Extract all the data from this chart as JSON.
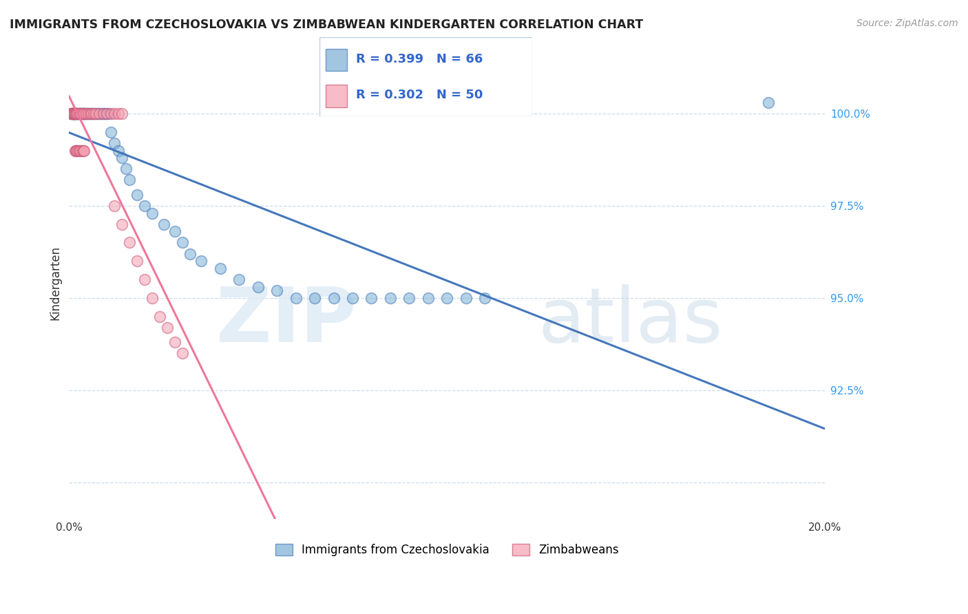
{
  "title": "IMMIGRANTS FROM CZECHOSLOVAKIA VS ZIMBABWEAN KINDERGARTEN CORRELATION CHART",
  "source": "Source: ZipAtlas.com",
  "ylabel": "Kindergarten",
  "blue_color": "#7BAFD4",
  "blue_edge_color": "#4477BB",
  "pink_color": "#F4A0B0",
  "pink_edge_color": "#CC5577",
  "blue_line_color": "#4477BB",
  "pink_line_color": "#EE7799",
  "xlim": [
    0.0,
    20.0
  ],
  "ylim": [
    89.0,
    101.8
  ],
  "yticks": [
    90.0,
    92.5,
    95.0,
    97.5,
    100.0
  ],
  "ytick_labels": [
    "",
    "92.5%",
    "95.0%",
    "97.5%",
    "100.0%"
  ],
  "blue_x": [
    0.05,
    0.08,
    0.1,
    0.1,
    0.12,
    0.13,
    0.15,
    0.15,
    0.18,
    0.2,
    0.22,
    0.25,
    0.25,
    0.28,
    0.3,
    0.3,
    0.32,
    0.35,
    0.38,
    0.4,
    0.4,
    0.42,
    0.45,
    0.48,
    0.5,
    0.55,
    0.6,
    0.65,
    0.7,
    0.75,
    0.8,
    0.85,
    0.9,
    0.95,
    1.0,
    1.05,
    1.1,
    1.2,
    1.3,
    1.4,
    1.5,
    1.6,
    1.8,
    2.0,
    2.2,
    2.5,
    2.8,
    3.0,
    3.2,
    3.5,
    4.0,
    4.5,
    5.0,
    5.5,
    6.0,
    6.5,
    7.0,
    7.5,
    8.0,
    8.5,
    9.0,
    9.5,
    10.0,
    10.5,
    11.0,
    18.5
  ],
  "blue_y": [
    100.0,
    100.0,
    100.0,
    100.0,
    100.0,
    100.0,
    100.0,
    100.0,
    100.0,
    100.0,
    100.0,
    100.0,
    100.0,
    100.0,
    100.0,
    100.0,
    100.0,
    100.0,
    100.0,
    100.0,
    100.0,
    100.0,
    100.0,
    100.0,
    100.0,
    100.0,
    100.0,
    100.0,
    100.0,
    100.0,
    100.0,
    100.0,
    100.0,
    100.0,
    100.0,
    100.0,
    99.5,
    99.2,
    99.0,
    98.8,
    98.5,
    98.2,
    97.8,
    97.5,
    97.3,
    97.0,
    96.8,
    96.5,
    96.2,
    96.0,
    95.8,
    95.5,
    95.3,
    95.2,
    95.0,
    95.0,
    95.0,
    95.0,
    95.0,
    95.0,
    95.0,
    95.0,
    95.0,
    95.0,
    95.0,
    100.3
  ],
  "pink_x": [
    0.04,
    0.06,
    0.08,
    0.1,
    0.1,
    0.12,
    0.13,
    0.15,
    0.15,
    0.18,
    0.2,
    0.22,
    0.25,
    0.28,
    0.3,
    0.35,
    0.4,
    0.45,
    0.5,
    0.55,
    0.6,
    0.65,
    0.7,
    0.8,
    0.9,
    1.0,
    1.1,
    1.2,
    1.3,
    1.4,
    0.15,
    0.18,
    0.2,
    0.22,
    0.25,
    0.28,
    0.3,
    0.35,
    0.38,
    0.4,
    1.2,
    1.4,
    1.6,
    1.8,
    2.0,
    2.2,
    2.4,
    2.6,
    2.8,
    3.0
  ],
  "pink_y": [
    100.0,
    100.0,
    100.0,
    100.0,
    100.0,
    100.0,
    100.0,
    100.0,
    100.0,
    100.0,
    100.0,
    100.0,
    100.0,
    100.0,
    100.0,
    100.0,
    100.0,
    100.0,
    100.0,
    100.0,
    100.0,
    100.0,
    100.0,
    100.0,
    100.0,
    100.0,
    100.0,
    100.0,
    100.0,
    100.0,
    99.0,
    99.0,
    99.0,
    99.0,
    99.0,
    99.0,
    99.0,
    99.0,
    99.0,
    99.0,
    97.5,
    97.0,
    96.5,
    96.0,
    95.5,
    95.0,
    94.5,
    94.2,
    93.8,
    93.5
  ]
}
